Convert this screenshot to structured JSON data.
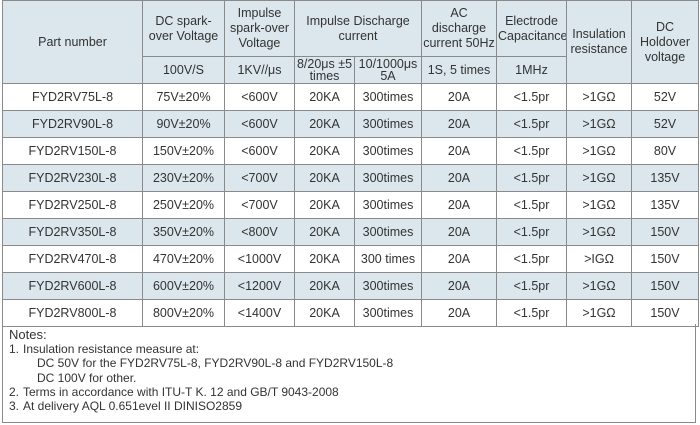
{
  "headers": {
    "part_number": "Part number",
    "dc_spark_over": "DC spark-over Voltage",
    "impulse_spark_over": "Impulse spark-over Voltage",
    "impulse_discharge": "Impulse Discharge current",
    "ac_discharge": "AC discharge current 50Hz",
    "electrode_capacitance": "Electrode Capacitance",
    "insulation_resistance": "Insulation resistance",
    "dc_holdover": "DC Holdover voltage"
  },
  "subheaders": {
    "dc_spark_over": "100V/S",
    "impulse_spark_over": "1KV//μs",
    "impulse_8_20": "8/20μs ±5 times",
    "impulse_10_1000": "10/1000μs 5A",
    "ac_discharge": "1S, 5 times",
    "electrode_capacitance": "1MHz"
  },
  "rows": [
    {
      "part": "FYD2RV75L-8",
      "dc": "75V±20%",
      "impulse": "<600V",
      "i820": "20KA",
      "i101000": "300times",
      "ac": "20A",
      "cap": "<1.5pr",
      "ins": ">1GΩ",
      "hold": "52V"
    },
    {
      "part": "FYD2RV90L-8",
      "dc": "90V±20%",
      "impulse": "<600V",
      "i820": "20KA",
      "i101000": "300times",
      "ac": "20A",
      "cap": "<1.5pr",
      "ins": ">1GΩ",
      "hold": "52V"
    },
    {
      "part": "FYD2RV150L-8",
      "dc": "150V±20%",
      "impulse": "<600V",
      "i820": "20KA",
      "i101000": "300times",
      "ac": "20A",
      "cap": "<1.5pr",
      "ins": ">1GΩ",
      "hold": "80V"
    },
    {
      "part": "FYD2RV230L-8",
      "dc": "230V±20%",
      "impulse": "<700V",
      "i820": "20KA",
      "i101000": "300times",
      "ac": "20A",
      "cap": "<1.5pr",
      "ins": ">1GΩ",
      "hold": "135V"
    },
    {
      "part": "FYD2RV250L-8",
      "dc": "250V±20%",
      "impulse": "<700V",
      "i820": "20KA",
      "i101000": "300times",
      "ac": "20A",
      "cap": "<1.5pr",
      "ins": ">1GΩ",
      "hold": "135V"
    },
    {
      "part": "FYD2RV350L-8",
      "dc": "350V±20%",
      "impulse": "<800V",
      "i820": "20KA",
      "i101000": "300times",
      "ac": "20A",
      "cap": "<1.5pr",
      "ins": ">1GΩ",
      "hold": "150V"
    },
    {
      "part": "FYD2RV470L-8",
      "dc": "470V±20%",
      "impulse": "<1000V",
      "i820": "20KA",
      "i101000": "300 times",
      "ac": "20A",
      "cap": "<1.5pr",
      "ins": ">IGΩ",
      "hold": "150V"
    },
    {
      "part": "FYD2RV600L-8",
      "dc": "600V±20%",
      "impulse": "<1200V",
      "i820": "20KA",
      "i101000": "300times",
      "ac": "20A",
      "cap": "<1.5pr",
      "ins": ">1GΩ",
      "hold": "150V"
    },
    {
      "part": "FYD2RV800L-8",
      "dc": "800V±20%",
      "impulse": "<1400V",
      "i820": "20KA",
      "i101000": "300times",
      "ac": "20A",
      "cap": "<1.5pr",
      "ins": ">1GΩ",
      "hold": "150V"
    }
  ],
  "notes": {
    "title": "Notes:",
    "items": [
      {
        "num": "1.",
        "lines": [
          "Insulation resistance measure at:",
          "DC 50V for the FYD2RV75L-8, FYD2RV90L-8 and FYD2RV150L-8",
          "DC 100V for other."
        ]
      },
      {
        "num": "2.",
        "lines": [
          "Terms in accordance with ITU-T K. 12 and GB/T 9043-2008"
        ]
      },
      {
        "num": "3.",
        "lines": [
          "At delivery AQL 0.651evel II DINISO2859"
        ]
      }
    ]
  }
}
